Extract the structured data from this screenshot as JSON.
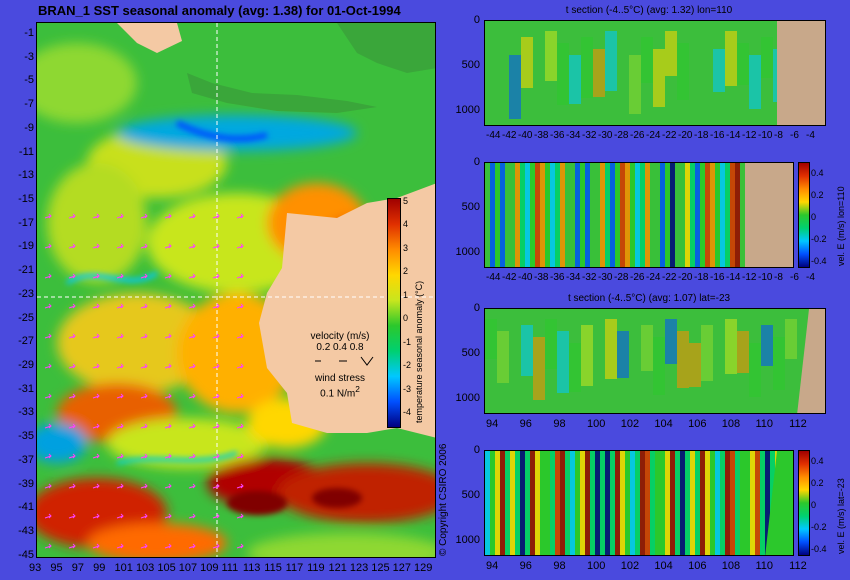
{
  "map": {
    "title": "BRAN_1  SST seasonal anomaly (avg: 1.38) for 01-Oct-1994",
    "lat_ticks": [
      "-1",
      "-3",
      "-5",
      "-7",
      "-9",
      "-11",
      "-13",
      "-15",
      "-17",
      "-19",
      "-21",
      "-23",
      "-25",
      "-27",
      "-29",
      "-31",
      "-33",
      "-35",
      "-37",
      "-39",
      "-41",
      "-43",
      "-45"
    ],
    "lon_ticks": [
      "93",
      "95",
      "97",
      "99",
      "101",
      "103",
      "105",
      "107",
      "109",
      "111",
      "113",
      "115",
      "117",
      "119",
      "121",
      "123",
      "125",
      "127",
      "129"
    ],
    "colorbar": {
      "label": "temperature seasonal anomaly (°C)",
      "ticks": [
        "5",
        "4",
        "3",
        "2",
        "1",
        "0",
        "-1",
        "-2",
        "-3",
        "-4"
      ]
    },
    "velocity_legend": {
      "title": "velocity (m/s)",
      "scale": "0.2 0.4 0.8",
      "wind_title": "wind stress",
      "wind_scale": "0.1 N/m",
      "wind_scale_sup": "2"
    },
    "copyright": "© Copyright CSIRO 2006"
  },
  "panels": [
    {
      "title": "t section (-4..5°C) (avg: 1.32) lon=110",
      "y_ticks": [
        "0",
        "500",
        "1000"
      ],
      "x_ticks": [
        "-44",
        "-42",
        "-40",
        "-38",
        "-36",
        "-34",
        "-32",
        "-30",
        "-28",
        "-26",
        "-24",
        "-22",
        "-20",
        "-18",
        "-16",
        "-14",
        "-12",
        "-10",
        "-8",
        "-6",
        "-4"
      ],
      "colorbar_label": "",
      "colorbar_ticks": []
    },
    {
      "title": "",
      "y_ticks": [
        "0",
        "500",
        "1000"
      ],
      "x_ticks": [
        "-44",
        "-42",
        "-40",
        "-38",
        "-36",
        "-34",
        "-32",
        "-30",
        "-28",
        "-26",
        "-24",
        "-22",
        "-20",
        "-18",
        "-16",
        "-14",
        "-12",
        "-10",
        "-8",
        "-6",
        "-4"
      ],
      "colorbar_label": "vel. E (m/s) lon=110",
      "colorbar_ticks": [
        "0.4",
        "0.2",
        "0",
        "-0.2",
        "-0.4"
      ]
    },
    {
      "title": "t section (-4..5°C) (avg: 1.07) lat=-23",
      "y_ticks": [
        "0",
        "500",
        "1000"
      ],
      "x_ticks": [
        "94",
        "96",
        "98",
        "100",
        "102",
        "104",
        "106",
        "108",
        "110",
        "112"
      ],
      "colorbar_label": "",
      "colorbar_ticks": []
    },
    {
      "title": "",
      "y_ticks": [
        "0",
        "500",
        "1000"
      ],
      "x_ticks": [
        "94",
        "96",
        "98",
        "100",
        "102",
        "104",
        "106",
        "108",
        "110",
        "112"
      ],
      "colorbar_label": "vel. E (m/s) lat=-23",
      "colorbar_ticks": [
        "0.4",
        "0.2",
        "0",
        "-0.2",
        "-0.4"
      ]
    }
  ],
  "colors": {
    "background": "#4a4ade",
    "land": "#f4c9a4",
    "section_land": "#c8a88a",
    "anomaly_scale": [
      "#000080",
      "#0050ff",
      "#00c8ff",
      "#00d070",
      "#2cc82c",
      "#c8e61e",
      "#ffd700",
      "#ff8c00",
      "#e03000",
      "#a00000"
    ]
  }
}
